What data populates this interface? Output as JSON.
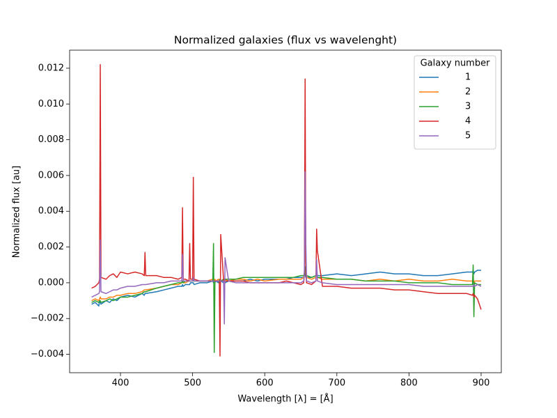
{
  "chart_data": {
    "type": "line",
    "title": "Normalized galaxies (flux vs wavelenght)",
    "x_label": "Wavelength [λ] = [Å]",
    "y_label": "Normalized flux [au]",
    "legend_title": "Galaxy number",
    "legend": "upper right",
    "grid": false,
    "xlim": [
      329.5,
      928
    ],
    "ylim": [
      -0.00503,
      0.01301
    ],
    "xticks": [
      400,
      500,
      600,
      700,
      800,
      900
    ],
    "yticks": [
      {
        "value": -0.004,
        "label": "−0.004"
      },
      {
        "value": -0.002,
        "label": "−0.002"
      },
      {
        "value": 0,
        "label": "0.000"
      },
      0.002,
      0.004,
      0.006,
      0.008,
      {
        "value": 0.01,
        "label": "0.010"
      },
      0.012
    ],
    "x": [
      360,
      365,
      370,
      371,
      372,
      373,
      380,
      385,
      390,
      395,
      400,
      410,
      420,
      430,
      433,
      434,
      435,
      450,
      460,
      470,
      480,
      485,
      486,
      487,
      490,
      495,
      496,
      497,
      500,
      501,
      502,
      510,
      520,
      528,
      529,
      530,
      531,
      532,
      536,
      537,
      538,
      539,
      543,
      544,
      545,
      550,
      560,
      570,
      580,
      590,
      600,
      620,
      630,
      640,
      650,
      654,
      655,
      656,
      657,
      658,
      665,
      671,
      672,
      673,
      680,
      700,
      720,
      740,
      760,
      780,
      800,
      820,
      840,
      860,
      880,
      888,
      889,
      890,
      891,
      895,
      900
    ],
    "series": [
      {
        "name": "1",
        "color": "#1f77b4",
        "values": [
          -0.0012,
          -0.0011,
          -0.0013,
          -0.001,
          -0.0011,
          -0.0012,
          -0.001,
          -0.0011,
          -0.0009,
          -0.001,
          -0.0008,
          -0.0007,
          -0.0008,
          -0.0006,
          -0.0007,
          -0.0006,
          -0.0006,
          -0.0005,
          -0.0004,
          -0.0003,
          -0.0002,
          -0.0002,
          -0.0001,
          -0.0002,
          -0.0001,
          -0.0001,
          -0.0001,
          0,
          0,
          0,
          -0.0001,
          0,
          0,
          0.0001,
          0,
          0.0001,
          0,
          0.0001,
          0,
          0.0001,
          0,
          0.0001,
          0,
          0.0001,
          0,
          0.0001,
          0.0001,
          0.0001,
          0.0002,
          0.0001,
          0.0002,
          0.0002,
          0.0002,
          0.0003,
          0.0003,
          0.0003,
          0.0004,
          0.0005,
          0.0003,
          0.0003,
          0.0003,
          0.0004,
          0.0005,
          0.0004,
          0.0004,
          0.0005,
          0.0004,
          0.0005,
          0.0006,
          0.0005,
          0.0005,
          0.0004,
          0.0004,
          0.0005,
          0.0006,
          0.0006,
          0.0007,
          0.0005,
          0.0006,
          0.0007,
          0.0007
        ]
      },
      {
        "name": "2",
        "color": "#ff7f0e",
        "values": [
          -0.001,
          -0.0009,
          -0.001,
          -0.0009,
          -0.0008,
          -0.0009,
          -0.0009,
          -0.0008,
          -0.0008,
          -0.0007,
          -0.0007,
          -0.0006,
          -0.0006,
          -0.0005,
          -0.0004,
          -0.0004,
          -0.0004,
          -0.0003,
          -0.0002,
          -0.0001,
          -0.0001,
          0,
          0.0001,
          0,
          0,
          0.0001,
          0.0001,
          0.0001,
          0.0001,
          0.0002,
          0.0001,
          0.0001,
          0.0001,
          0.0002,
          0.0001,
          0.0001,
          0.0002,
          0.0001,
          0.0002,
          0.0001,
          0.0002,
          0.0001,
          0.0002,
          0.0001,
          0.0002,
          0.0001,
          0.0002,
          0.0002,
          0.0001,
          0.0002,
          0.0001,
          0.0002,
          0.0002,
          0.0002,
          0.0002,
          0.0003,
          0.0006,
          0.0025,
          0.0008,
          0.0003,
          0.0002,
          0.0003,
          0.0008,
          0.0003,
          0.0002,
          0.0002,
          0.0002,
          0.0001,
          0.0002,
          0.0001,
          0.0002,
          0.0001,
          0.0001,
          0.0002,
          0.0001,
          0.0001,
          0.0002,
          0,
          0.0001,
          0.0001,
          0.0001
        ]
      },
      {
        "name": "3",
        "color": "#2ca02c",
        "values": [
          -0.0011,
          -0.001,
          -0.0011,
          -0.001,
          -0.001,
          -0.0011,
          -0.001,
          -0.0009,
          -0.001,
          -0.0009,
          -0.0008,
          -0.0008,
          -0.0007,
          -0.0006,
          -0.0005,
          -0.0005,
          -0.0005,
          -0.0003,
          -0.0002,
          -0.0001,
          0,
          0,
          0.0001,
          0,
          0.0001,
          0.0001,
          0.0001,
          0.0001,
          0.0001,
          0.0001,
          0.0001,
          0.0001,
          0.0001,
          0.0001,
          0.0022,
          -0.0039,
          0.0001,
          0.0001,
          0.0001,
          0.0001,
          0.0002,
          0.0001,
          0.0002,
          0.0002,
          0.0002,
          0.0002,
          0.0002,
          0.0003,
          0.0003,
          0.0003,
          0.0003,
          0.0003,
          0.0003,
          0.0003,
          0.0004,
          0.0004,
          0.0005,
          0.0009,
          0.0004,
          0.0004,
          0.0003,
          0.0004,
          0.0006,
          0.0003,
          0.0003,
          0.0002,
          0.0002,
          0.0001,
          0.0001,
          0.0001,
          0,
          0,
          0,
          -0.0001,
          -0.0001,
          -0.0001,
          0.001,
          -0.0019,
          0,
          -0.0001,
          -0.0001
        ]
      },
      {
        "name": "4",
        "color": "#d62728",
        "values": [
          -0.0003,
          -0.0002,
          0,
          0.0002,
          0.0122,
          0.0003,
          0.0002,
          0.0004,
          0.0005,
          0.0003,
          0.0006,
          0.0005,
          0.0006,
          0.0005,
          0.0004,
          0.0017,
          0.0004,
          0.0004,
          0.0003,
          0.0003,
          0.0002,
          0.0003,
          0.0042,
          0.0002,
          0.0002,
          0.0001,
          0.0022,
          0.0002,
          0.0002,
          0.0059,
          0.0002,
          0.0001,
          0.0001,
          0.0001,
          0.0001,
          0.0001,
          0.0001,
          0.0001,
          0.0001,
          0.0001,
          -0.0041,
          0.0027,
          0.0001,
          0.0001,
          0.0001,
          0.0001,
          0.0001,
          0.0001,
          0,
          0,
          0,
          0,
          0.0001,
          0,
          -0.0001,
          0,
          0.0005,
          0.0114,
          0.0006,
          0,
          -0.0001,
          0.0001,
          0.003,
          0.0018,
          -0.0002,
          -0.0002,
          -0.0003,
          -0.0003,
          -0.0003,
          -0.0004,
          -0.0004,
          -0.0005,
          -0.0006,
          -0.0006,
          -0.0006,
          -0.0007,
          -0.0006,
          -0.0008,
          -0.0007,
          -0.0009,
          -0.0015
        ]
      },
      {
        "name": "5",
        "color": "#9467bd",
        "values": [
          -0.0008,
          -0.0007,
          -0.0006,
          -0.0005,
          0.0024,
          -0.0005,
          -0.0006,
          -0.0005,
          -0.0004,
          -0.0004,
          -0.0003,
          -0.0002,
          -0.0002,
          -0.0001,
          -0.0001,
          -0.0001,
          -0.0001,
          0,
          0,
          0.0001,
          0.0001,
          0.0001,
          0.0016,
          0.0001,
          0.0001,
          0.0001,
          0.0001,
          0.0001,
          0.0001,
          0.0003,
          0.0001,
          0.0001,
          0.0001,
          0.0001,
          0.0001,
          0.0001,
          0.0001,
          0.0001,
          0.0001,
          0.0001,
          0.0001,
          0.0001,
          0.0001,
          -0.0023,
          0.0014,
          0.0001,
          0,
          0,
          0,
          0,
          0,
          0,
          0,
          0,
          0,
          0.0001,
          0.0006,
          0.0062,
          0.0022,
          0.0001,
          0,
          0.0001,
          0.0013,
          0.0001,
          0,
          -0.0001,
          -0.0001,
          -0.0001,
          -0.0001,
          -0.0001,
          -0.0001,
          -0.0002,
          -0.0002,
          -0.0002,
          -0.0002,
          -0.0002,
          -0.0002,
          -0.0001,
          -0.0002,
          -0.0001,
          -0.0002
        ]
      }
    ]
  }
}
